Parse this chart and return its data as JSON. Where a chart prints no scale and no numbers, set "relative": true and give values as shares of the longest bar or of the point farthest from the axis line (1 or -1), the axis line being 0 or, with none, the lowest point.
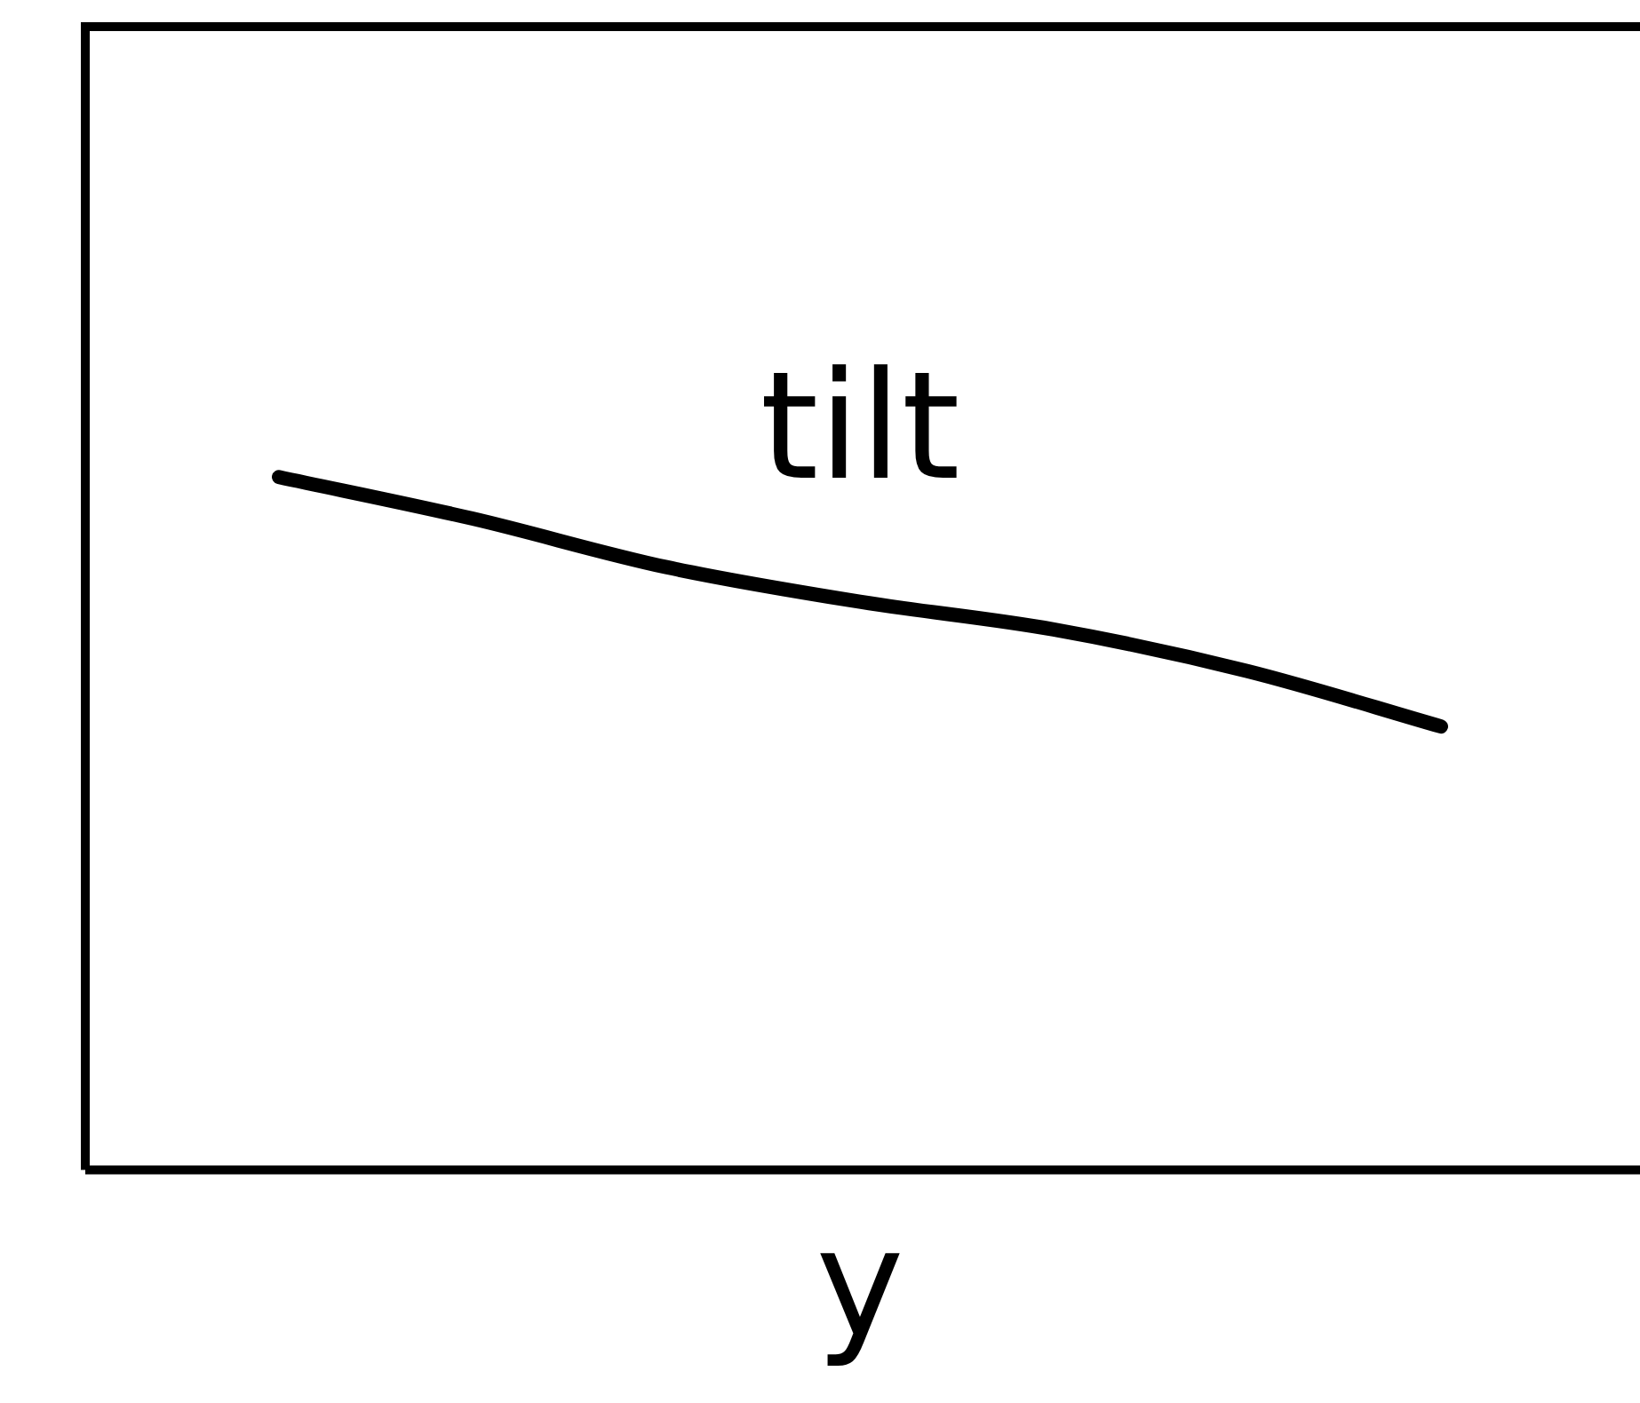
{
  "chart_data": {
    "type": "line",
    "xlabel": "y",
    "relative": true,
    "categories": [
      null,
      null,
      null,
      null,
      null,
      null,
      null,
      null,
      null
    ],
    "series": [
      {
        "name": "tilt",
        "color": "#000000",
        "values": [
          null,
          1,
          0.94,
          0.87,
          0.82,
          0.78,
          0.72,
          0.64,
          null
        ]
      }
    ],
    "grid": false,
    "legend": false,
    "marker": "none",
    "line_style": "solid"
  }
}
